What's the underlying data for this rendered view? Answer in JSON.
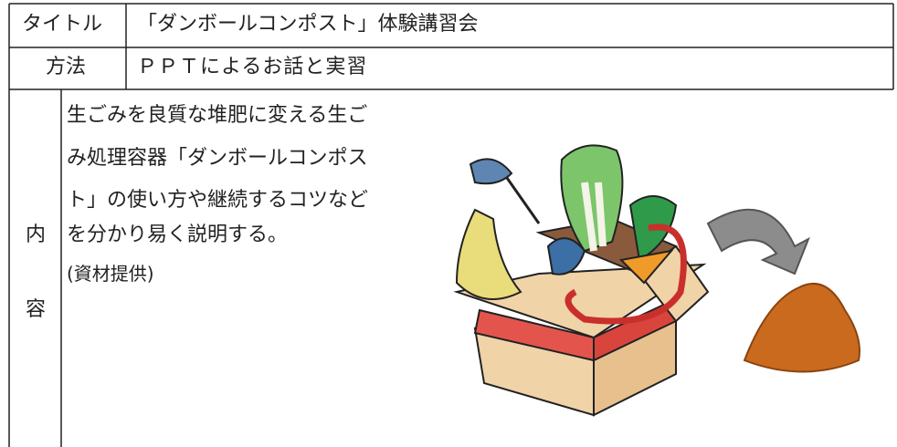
{
  "rows": [
    {
      "label": "タイトル",
      "value": "「ダンボールコンポスト」体験講習会"
    },
    {
      "label": "方法",
      "value": "ＰＰＴによるお話と実習"
    }
  ],
  "content": {
    "label": [
      "内",
      "容"
    ],
    "lines": [
      "生ごみを良質な堆肥に変える生ご",
      "み処理容器「ダンボールコンポス",
      "ト」の使い方や継続するコツなど",
      "を分かり易く説明する。",
      "(資材提供)"
    ]
  }
}
